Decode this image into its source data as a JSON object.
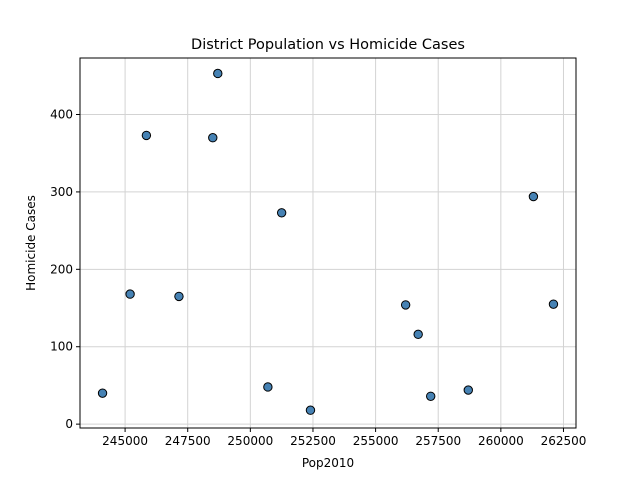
{
  "chart_data": {
    "type": "scatter",
    "title": "District Population vs Homicide Cases",
    "xlabel": "Pop2010",
    "ylabel": "Homicide Cases",
    "xlim": [
      243200,
      263000
    ],
    "ylim": [
      -5,
      473
    ],
    "xticks": [
      245000,
      247500,
      250000,
      252500,
      255000,
      257500,
      260000,
      262500
    ],
    "xtick_labels": [
      "245000",
      "247500",
      "250000",
      "252500",
      "255000",
      "257500",
      "260000",
      "262500"
    ],
    "yticks": [
      0,
      100,
      200,
      300,
      400
    ],
    "ytick_labels": [
      "0",
      "100",
      "200",
      "300",
      "400"
    ],
    "grid": true,
    "marker_color": "#4682b4",
    "marker_edge": "#000000",
    "points": [
      {
        "x": 244100,
        "y": 40
      },
      {
        "x": 245200,
        "y": 168
      },
      {
        "x": 245850,
        "y": 373
      },
      {
        "x": 247150,
        "y": 165
      },
      {
        "x": 248500,
        "y": 370
      },
      {
        "x": 248700,
        "y": 453
      },
      {
        "x": 250700,
        "y": 48
      },
      {
        "x": 251250,
        "y": 273
      },
      {
        "x": 252400,
        "y": 18
      },
      {
        "x": 256200,
        "y": 154
      },
      {
        "x": 256700,
        "y": 116
      },
      {
        "x": 257200,
        "y": 36
      },
      {
        "x": 258700,
        "y": 44
      },
      {
        "x": 261300,
        "y": 294
      },
      {
        "x": 262100,
        "y": 155
      }
    ]
  }
}
